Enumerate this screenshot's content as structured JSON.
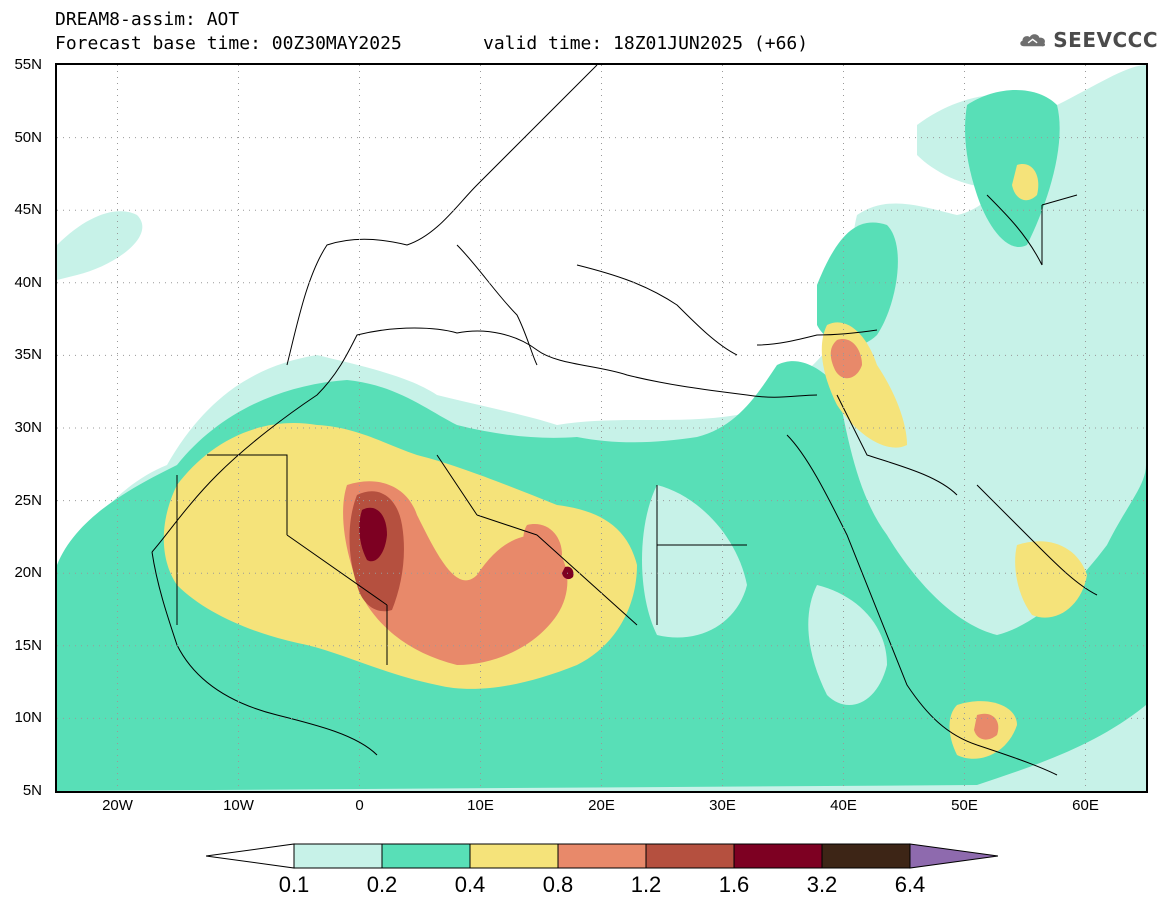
{
  "header": {
    "title": "DREAM8-assim: AOT",
    "base_time": "Forecast base time: 00Z30MAY2025",
    "valid_time": "valid time: 18Z01JUN2025 (+66)"
  },
  "logo": {
    "icon": "cloud-icon",
    "text": "SEEVCCC"
  },
  "map": {
    "lon_range": [
      -25,
      65
    ],
    "lat_range": [
      5,
      55
    ],
    "lat_ticks": [
      "55N",
      "50N",
      "45N",
      "40N",
      "35N",
      "30N",
      "25N",
      "20N",
      "15N",
      "10N",
      "5N"
    ],
    "lon_ticks": [
      "20W",
      "10W",
      "0",
      "10E",
      "20E",
      "30E",
      "40E",
      "50E",
      "60E"
    ],
    "grid": true
  },
  "colorbar": {
    "levels": [
      "0.1",
      "0.2",
      "0.4",
      "0.8",
      "1.2",
      "1.6",
      "3.2",
      "6.4"
    ],
    "colors": [
      "#ffffff",
      "#c7f2e8",
      "#58dfb7",
      "#f5e37a",
      "#e8896a",
      "#b5503f",
      "#7d0022",
      "#3d2516",
      "#8e6aae"
    ]
  }
}
